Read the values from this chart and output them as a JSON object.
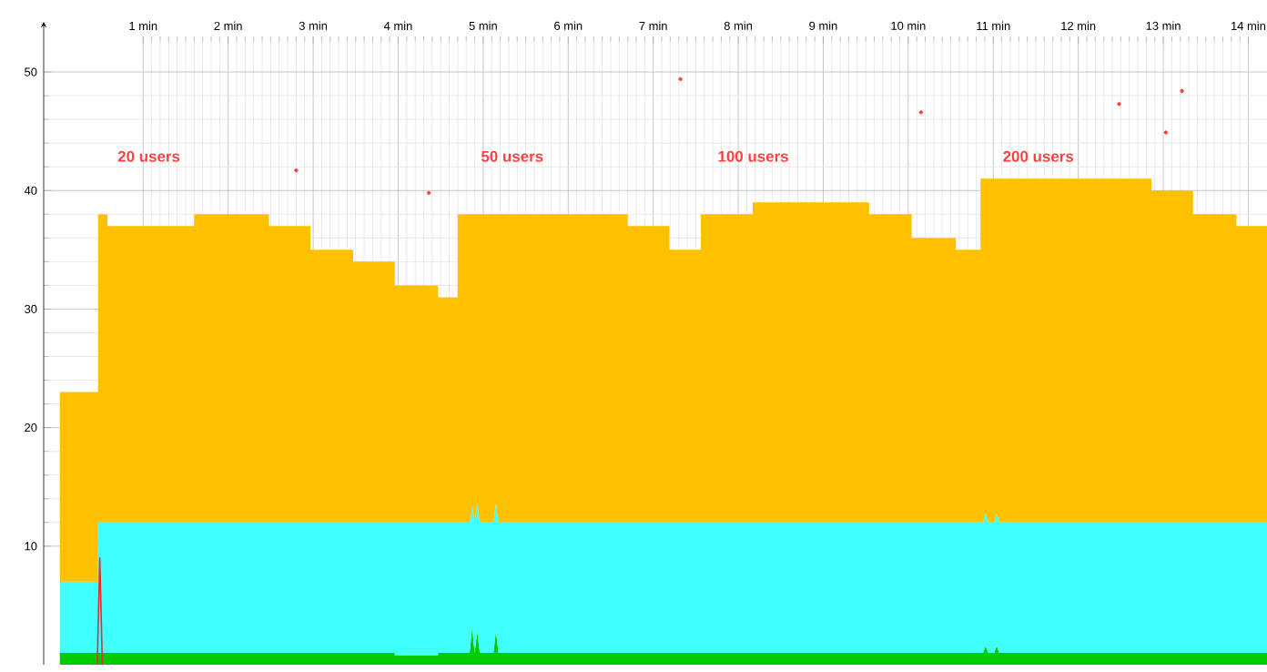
{
  "chart_data": {
    "type": "area",
    "stacked": true,
    "grid": true,
    "x": [
      0.02,
      0.47,
      0.47,
      0.58,
      0.58,
      1.6,
      1.6,
      2.48,
      2.48,
      2.97,
      2.97,
      3.47,
      3.47,
      3.96,
      3.96,
      4.47,
      4.47,
      4.7,
      4.7,
      4.84,
      4.87,
      4.9,
      4.93,
      4.96,
      5.12,
      5.15,
      5.18,
      6.7,
      6.7,
      7.19,
      7.19,
      7.56,
      7.56,
      8.17,
      8.17,
      9.54,
      9.54,
      10.04,
      10.04,
      10.56,
      10.56,
      10.85,
      10.85,
      10.88,
      10.91,
      10.94,
      11.01,
      11.04,
      11.07,
      12.86,
      12.86,
      13.35,
      13.35,
      13.86,
      13.86,
      14.22
    ],
    "series": [
      {
        "color": "#00cc00",
        "values": [
          1,
          1,
          1,
          1,
          1,
          1,
          1,
          1,
          1,
          1,
          1,
          1,
          1,
          1,
          0.8,
          0.8,
          1,
          1,
          1,
          1,
          3.1,
          1,
          2.8,
          1,
          1,
          2.8,
          1,
          1,
          1,
          1,
          1,
          1,
          1,
          1,
          1,
          1,
          1,
          1,
          1,
          1,
          1,
          1,
          1,
          1,
          1.6,
          1,
          1,
          1.6,
          1,
          1,
          1,
          1,
          1,
          1,
          1,
          1
        ]
      },
      {
        "color": "#40ffff",
        "values": [
          6,
          6,
          11,
          11,
          11,
          11,
          11,
          11,
          11,
          11,
          11,
          11,
          11,
          11,
          11.2,
          11.2,
          11,
          11,
          11,
          11,
          10.2,
          11,
          10.8,
          11,
          11,
          10.8,
          11,
          11,
          11,
          11,
          11,
          11,
          11,
          11,
          11,
          11,
          11,
          11,
          11,
          11,
          11,
          11,
          11,
          11,
          11.2,
          11,
          11,
          11.2,
          11,
          11,
          11,
          11,
          11,
          11,
          11,
          11
        ]
      },
      {
        "color": "#ffc000",
        "values": [
          16,
          16,
          26,
          26,
          25,
          25,
          26,
          26,
          25,
          25,
          23,
          23,
          22,
          22,
          20,
          20,
          19,
          19,
          26,
          26,
          24.7,
          26,
          24.4,
          26,
          26,
          24.4,
          26,
          26,
          25,
          25,
          23,
          23,
          26,
          26,
          27,
          27,
          26,
          26,
          24,
          24,
          23,
          23,
          29,
          29,
          28.2,
          29,
          29,
          28.2,
          29,
          29,
          28,
          28,
          26,
          26,
          25,
          25
        ]
      },
      {
        "type": "scatter",
        "color": "#ff4040",
        "x": [
          2.8,
          4.36,
          7.32,
          10.15,
          12.48,
          13.03,
          13.22
        ],
        "values": [
          41.7,
          39.8,
          49.4,
          46.6,
          47.3,
          44.9,
          48.4
        ]
      },
      {
        "type": "line",
        "color": "#e03030",
        "x": [
          0.46,
          0.49,
          0.52
        ],
        "values": [
          0,
          9,
          0
        ]
      }
    ],
    "xlim": [
      -0.17,
      14.22
    ],
    "ylim": [
      0,
      53
    ],
    "xticks": [
      {
        "value": 1,
        "label": "1 min"
      },
      {
        "value": 2,
        "label": "2 min"
      },
      {
        "value": 3,
        "label": "3 min"
      },
      {
        "value": 4,
        "label": "4 min"
      },
      {
        "value": 5,
        "label": "5 min"
      },
      {
        "value": 6,
        "label": "6 min"
      },
      {
        "value": 7,
        "label": "7 min"
      },
      {
        "value": 8,
        "label": "8 min"
      },
      {
        "value": 9,
        "label": "9 min"
      },
      {
        "value": 10,
        "label": "10 min"
      },
      {
        "value": 11,
        "label": "11 min"
      },
      {
        "value": 12,
        "label": "12 min"
      },
      {
        "value": 13,
        "label": "13 min"
      },
      {
        "value": 14,
        "label": "14 min"
      }
    ],
    "yticks": [
      10,
      20,
      30,
      40,
      50
    ],
    "annotations": [
      "20 users",
      "50 users",
      "100 users",
      "200 users"
    ]
  }
}
